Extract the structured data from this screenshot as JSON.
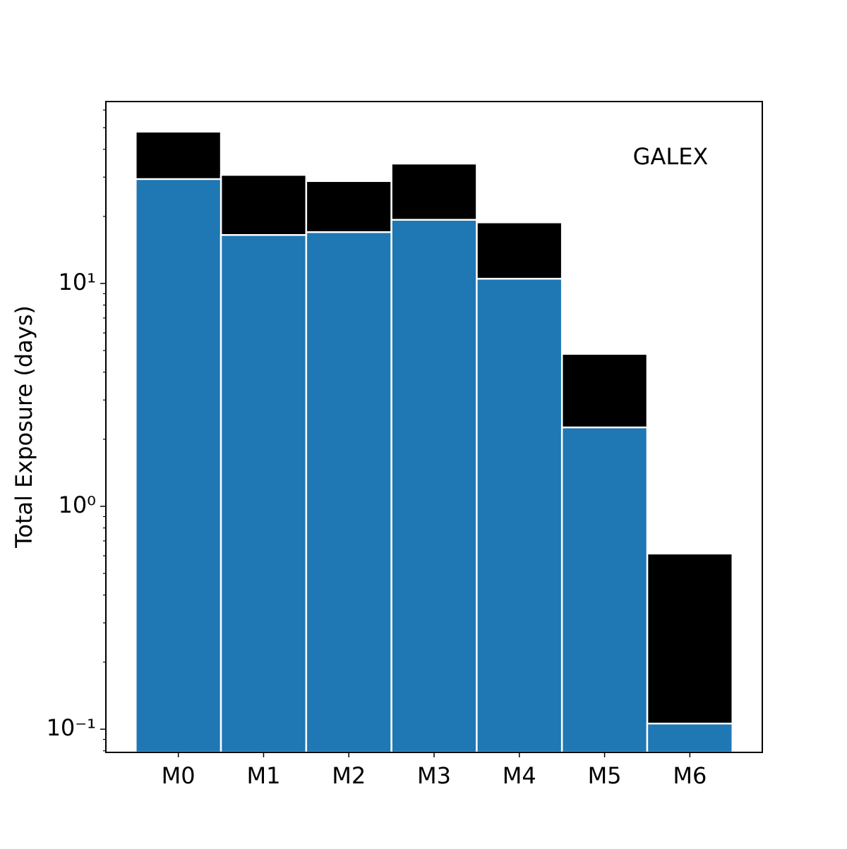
{
  "chart_data": {
    "type": "bar",
    "overlay": true,
    "log_y": true,
    "y_label": "Total Exposure (days)",
    "annotation": "GALEX",
    "categories": [
      "M0",
      "M1",
      "M2",
      "M3",
      "M4",
      "M5",
      "M6"
    ],
    "series": [
      {
        "color": "#000000",
        "values": [
          48,
          30.7,
          28.8,
          34.5,
          18.8,
          4.83,
          0.614
        ]
      },
      {
        "color": "#1f77b4",
        "values": [
          29.4,
          16.5,
          17.0,
          19.3,
          10.5,
          2.26,
          0.106
        ]
      }
    ],
    "ylim": [
      0.0787,
      65.5
    ],
    "yticks": [
      {
        "value": 0.1,
        "label": "10⁻¹"
      },
      {
        "value": 1,
        "label": "10⁰"
      },
      {
        "value": 10,
        "label": "10¹"
      }
    ],
    "yminorticks": [
      0.08,
      0.09,
      0.2,
      0.3,
      0.4,
      0.5,
      0.6,
      0.7,
      0.8,
      0.9,
      2,
      3,
      4,
      5,
      6,
      7,
      8,
      9,
      20,
      30,
      40,
      50,
      60
    ]
  }
}
